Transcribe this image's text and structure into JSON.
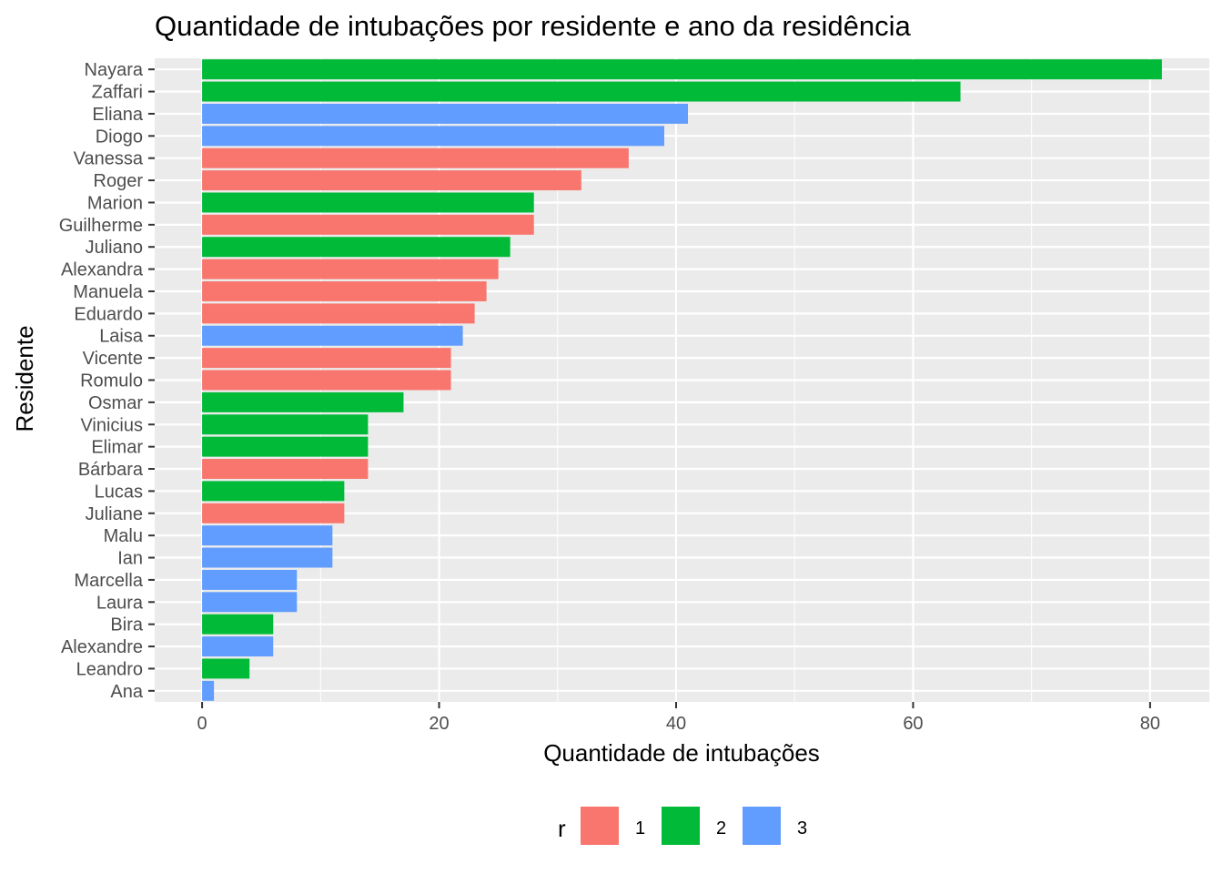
{
  "chart_data": {
    "type": "bar",
    "orientation": "horizontal",
    "title": "Quantidade de intubações por residente e ano da residência",
    "xlabel": "Quantidade de intubações",
    "ylabel": "Residente",
    "xlim": [
      -4,
      85
    ],
    "x_ticks": [
      0,
      20,
      40,
      60,
      80
    ],
    "grid": true,
    "legend": {
      "title": "r",
      "placement": "bottom",
      "entries": [
        {
          "label": "1",
          "color": "#F8766D"
        },
        {
          "label": "2",
          "color": "#00BA38"
        },
        {
          "label": "3",
          "color": "#619CFF"
        }
      ]
    },
    "categories": [
      "Nayara",
      "Zaffari",
      "Eliana",
      "Diogo",
      "Vanessa",
      "Roger",
      "Marion",
      "Guilherme",
      "Juliano",
      "Alexandra",
      "Manuela",
      "Eduardo",
      "Laisa",
      "Vicente",
      "Romulo",
      "Osmar",
      "Vinicius",
      "Elimar",
      "Bárbara",
      "Lucas",
      "Juliane",
      "Malu",
      "Ian",
      "Marcella",
      "Laura",
      "Bira",
      "Alexandre",
      "Leandro",
      "Ana"
    ],
    "values": [
      81,
      64,
      41,
      39,
      36,
      32,
      28,
      28,
      26,
      25,
      24,
      23,
      22,
      21,
      21,
      17,
      14,
      14,
      14,
      12,
      12,
      11,
      11,
      8,
      8,
      6,
      6,
      4,
      1
    ],
    "groups": [
      "2",
      "2",
      "3",
      "3",
      "1",
      "1",
      "2",
      "1",
      "2",
      "1",
      "1",
      "1",
      "3",
      "1",
      "1",
      "2",
      "2",
      "2",
      "1",
      "2",
      "1",
      "3",
      "3",
      "3",
      "3",
      "2",
      "3",
      "2",
      "3"
    ],
    "colors": {
      "1": "#F8766D",
      "2": "#00BA38",
      "3": "#619CFF"
    },
    "panel_background": "#EBEBEB",
    "grid_color": "#FFFFFF"
  }
}
